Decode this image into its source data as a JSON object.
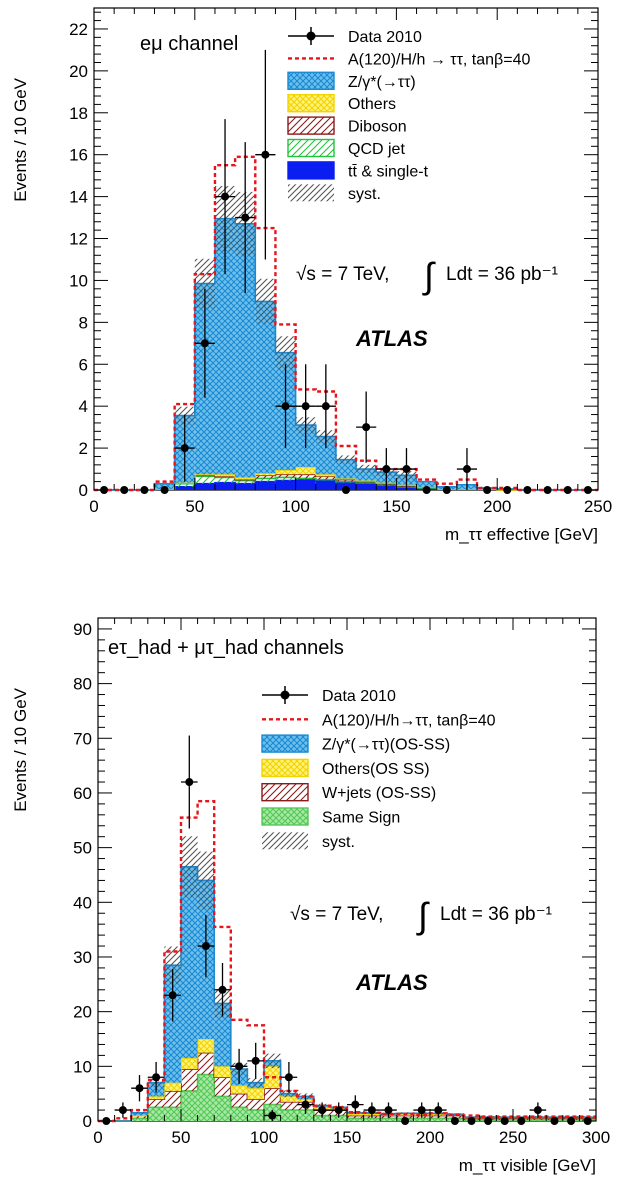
{
  "chart_data": [
    {
      "type": "bar",
      "channel_label": "eμ channel",
      "xlabel": "m_ττ effective [GeV]",
      "ylabel": "Events / 10 GeV",
      "xlim": [
        0,
        250
      ],
      "ylim": [
        0,
        23
      ],
      "xticks": [
        0,
        50,
        100,
        150,
        200,
        250
      ],
      "yticks": [
        0,
        2,
        4,
        6,
        8,
        10,
        12,
        14,
        16,
        18,
        20,
        22
      ],
      "energy_text": "√s = 7 TeV,",
      "lumi_text": "Ldt = 36 pb⁻¹",
      "atlas_label": "ATLAS",
      "legend_position": "top-right",
      "legend": [
        {
          "key": "data",
          "label": "Data 2010",
          "style": "marker",
          "color": "#000000"
        },
        {
          "key": "signal",
          "label": "A(120)/H/h → ττ, tanβ=40",
          "style": "dashed",
          "color": "#e8141c"
        },
        {
          "key": "ztautau",
          "label": "Z/γ*(→ττ)",
          "style": "fill",
          "color": "#6ec0ea",
          "edge": "#1a8ad4"
        },
        {
          "key": "others",
          "label": "Others",
          "style": "fill",
          "color": "#fff27a",
          "edge": "#f2d400"
        },
        {
          "key": "diboson",
          "label": "Diboson",
          "style": "hatch",
          "color": "#8b1a1a"
        },
        {
          "key": "qcd",
          "label": "QCD jet",
          "style": "hatch",
          "color": "#22c43a"
        },
        {
          "key": "ttbar",
          "label": "tt̄ & single-t",
          "style": "fill",
          "color": "#0a1ef2",
          "edge": "#0a1ef2"
        },
        {
          "key": "syst",
          "label": "syst.",
          "style": "hatch",
          "color": "#555555"
        }
      ],
      "bins": [
        0,
        10,
        20,
        30,
        40,
        50,
        60,
        70,
        80,
        90,
        100,
        110,
        120,
        130,
        140,
        150,
        160,
        170,
        180,
        190,
        200,
        210,
        220,
        230,
        240,
        250
      ],
      "stack": {
        "ttbar": [
          0,
          0,
          0,
          0.05,
          0.15,
          0.3,
          0.35,
          0.3,
          0.4,
          0.45,
          0.5,
          0.45,
          0.35,
          0.3,
          0.2,
          0.15,
          0.1,
          0.05,
          0.05,
          0.05,
          0,
          0,
          0,
          0,
          0
        ],
        "qcd": [
          0,
          0,
          0,
          0,
          0.15,
          0.35,
          0.25,
          0.15,
          0.15,
          0.15,
          0.05,
          0.05,
          0.05,
          0.05,
          0.05,
          0,
          0,
          0,
          0,
          0,
          0,
          0,
          0,
          0,
          0
        ],
        "diboson": [
          0,
          0,
          0,
          0,
          0.05,
          0.05,
          0.05,
          0.05,
          0.15,
          0.15,
          0.2,
          0.15,
          0.1,
          0.05,
          0.05,
          0.05,
          0.05,
          0,
          0,
          0,
          0,
          0,
          0,
          0,
          0
        ],
        "others": [
          0,
          0,
          0,
          0,
          0,
          0.05,
          0.1,
          0.1,
          0.1,
          0.2,
          0.35,
          0.1,
          0.05,
          0.05,
          0.05,
          0.05,
          0,
          0,
          0,
          0,
          0,
          0,
          0,
          0,
          0
        ],
        "ztautau": [
          0,
          0,
          0,
          0.25,
          3.2,
          9.1,
          12.2,
          12.1,
          8.2,
          5.6,
          2.0,
          1.8,
          0.9,
          0.55,
          0.5,
          0.45,
          0.25,
          0.1,
          0.2,
          0.05,
          0.05,
          0,
          0,
          0,
          0
        ]
      },
      "signal": [
        0,
        0,
        0,
        0.4,
        4.1,
        10.3,
        15.5,
        15.9,
        12.5,
        7.9,
        4.8,
        4.7,
        2.1,
        1.4,
        1.0,
        1.0,
        0.5,
        0.3,
        0.5,
        0.1,
        0.1,
        0,
        0,
        0,
        0
      ],
      "data": [
        {
          "x": 5,
          "y": 0
        },
        {
          "x": 15,
          "y": 0
        },
        {
          "x": 25,
          "y": 0
        },
        {
          "x": 35,
          "y": 0
        },
        {
          "x": 45,
          "y": 2,
          "err": 1.6
        },
        {
          "x": 55,
          "y": 7,
          "err": 2.6
        },
        {
          "x": 65,
          "y": 14,
          "err": 3.7
        },
        {
          "x": 75,
          "y": 13,
          "err": 3.6
        },
        {
          "x": 85,
          "y": 16,
          "err": 5.0
        },
        {
          "x": 95,
          "y": 4,
          "err": 2.0
        },
        {
          "x": 105,
          "y": 4,
          "err": 2.0
        },
        {
          "x": 115,
          "y": 4,
          "err": 2.0
        },
        {
          "x": 125,
          "y": 0
        },
        {
          "x": 135,
          "y": 3,
          "err": 1.7
        },
        {
          "x": 145,
          "y": 1,
          "err": 1.0
        },
        {
          "x": 155,
          "y": 1,
          "err": 1.0
        },
        {
          "x": 165,
          "y": 0
        },
        {
          "x": 175,
          "y": 0
        },
        {
          "x": 185,
          "y": 1,
          "err": 1.0
        },
        {
          "x": 195,
          "y": 0
        },
        {
          "x": 205,
          "y": 0
        },
        {
          "x": 215,
          "y": 0
        },
        {
          "x": 225,
          "y": 0
        },
        {
          "x": 235,
          "y": 0
        },
        {
          "x": 245,
          "y": 0
        }
      ]
    },
    {
      "type": "bar",
      "channel_label": "eτ_had + μτ_had channels",
      "xlabel": "m_ττ visible [GeV]",
      "ylabel": "Events / 10 GeV",
      "xlim": [
        0,
        300
      ],
      "ylim": [
        0,
        92
      ],
      "xticks": [
        0,
        50,
        100,
        150,
        200,
        250,
        300
      ],
      "yticks": [
        0,
        10,
        20,
        30,
        40,
        50,
        60,
        70,
        80,
        90
      ],
      "energy_text": "√s = 7 TeV,",
      "lumi_text": "Ldt = 36 pb⁻¹",
      "atlas_label": "ATLAS",
      "legend_position": "top-right",
      "legend": [
        {
          "key": "data",
          "label": "Data 2010",
          "style": "marker",
          "color": "#000000"
        },
        {
          "key": "signal",
          "label": "A(120)/H/h→ττ, tanβ=40",
          "style": "dashed",
          "color": "#e8141c"
        },
        {
          "key": "ztautau",
          "label": "Z/γ*(→ττ)(OS-SS)",
          "style": "fill",
          "color": "#6ec0ea",
          "edge": "#1a8ad4"
        },
        {
          "key": "others",
          "label": "Others(OS SS)",
          "style": "fill",
          "color": "#fff27a",
          "edge": "#f2d400"
        },
        {
          "key": "wjets",
          "label": "W+jets (OS-SS)",
          "style": "hatch",
          "color": "#8b1a1a"
        },
        {
          "key": "samesign",
          "label": "Same Sign",
          "style": "fill",
          "color": "#a6e8a6",
          "edge": "#55c855"
        },
        {
          "key": "syst",
          "label": "syst.",
          "style": "hatch",
          "color": "#555555"
        }
      ],
      "bins": [
        0,
        10,
        20,
        30,
        40,
        50,
        60,
        70,
        80,
        90,
        100,
        110,
        120,
        130,
        140,
        150,
        160,
        170,
        180,
        190,
        200,
        210,
        220,
        230,
        240,
        250,
        260,
        270,
        280,
        290,
        300
      ],
      "stack": {
        "samesign": [
          0,
          0,
          0.5,
          2.5,
          2.5,
          5.5,
          8.5,
          4.5,
          2.5,
          2.0,
          3.0,
          2.0,
          2.0,
          1.0,
          1.0,
          0.5,
          0.5,
          0.5,
          0.5,
          0.5,
          0.5,
          0.5,
          0.2,
          0.2,
          0.2,
          0.2,
          0.2,
          0.2,
          0.2,
          0.2
        ],
        "wjets": [
          0,
          0,
          0.5,
          1.5,
          3.0,
          4.0,
          4.0,
          3.5,
          2.5,
          2.0,
          3.0,
          1.5,
          1.5,
          1.0,
          1.0,
          0.5,
          0.5,
          0.5,
          0.5,
          0.5,
          0.5,
          0.5,
          0.3,
          0.3,
          0.3,
          0.3,
          0.3,
          0.3,
          0.3,
          0.3
        ],
        "others": [
          0,
          0,
          0,
          0.5,
          1.5,
          2.0,
          2.5,
          2.0,
          1.5,
          2.0,
          4.0,
          1.0,
          0.5,
          0.5,
          0.3,
          0.3,
          0.3,
          0.2,
          0.3,
          0.3,
          0.3,
          0.2,
          0.2,
          0.2,
          0.2,
          0.2,
          0.2,
          0.2,
          0.2,
          0.2
        ],
        "ztautau": [
          0,
          0,
          0.5,
          2.5,
          21.5,
          35.0,
          29.0,
          11.5,
          3.0,
          1.0,
          1.0,
          0.5,
          0.5,
          0.3,
          0.2,
          0.2,
          0.2,
          0.1,
          0.1,
          0.1,
          0.1,
          0,
          0,
          0,
          0,
          0,
          0,
          0,
          0,
          0
        ]
      },
      "signal": [
        0,
        0.5,
        2.0,
        7.5,
        31,
        55.5,
        58.5,
        35.5,
        18.5,
        17.5,
        8.0,
        5.5,
        4.5,
        2.8,
        2.5,
        1.6,
        1.5,
        1.3,
        1.3,
        1.1,
        1.4,
        1.2,
        1.0,
        0.8,
        0.8,
        0.8,
        0.8,
        0.8,
        0.8,
        0.8
      ],
      "data": [
        {
          "x": 5,
          "y": 0
        },
        {
          "x": 15,
          "y": 2,
          "err": 1.4
        },
        {
          "x": 25,
          "y": 6,
          "err": 2.4
        },
        {
          "x": 35,
          "y": 8,
          "err": 2.8
        },
        {
          "x": 45,
          "y": 23,
          "err": 4.8
        },
        {
          "x": 55,
          "y": 62,
          "err": 8.5
        },
        {
          "x": 65,
          "y": 32,
          "err": 5.7
        },
        {
          "x": 75,
          "y": 24,
          "err": 4.9
        },
        {
          "x": 85,
          "y": 10,
          "err": 3.2
        },
        {
          "x": 95,
          "y": 11,
          "err": 3.3
        },
        {
          "x": 105,
          "y": 1,
          "err": 1.0
        },
        {
          "x": 115,
          "y": 8,
          "err": 2.8
        },
        {
          "x": 125,
          "y": 3,
          "err": 1.7
        },
        {
          "x": 135,
          "y": 2,
          "err": 1.4
        },
        {
          "x": 145,
          "y": 2,
          "err": 1.4
        },
        {
          "x": 155,
          "y": 3,
          "err": 1.7
        },
        {
          "x": 165,
          "y": 2,
          "err": 1.4
        },
        {
          "x": 175,
          "y": 2,
          "err": 1.4
        },
        {
          "x": 185,
          "y": 0
        },
        {
          "x": 195,
          "y": 2,
          "err": 1.4
        },
        {
          "x": 205,
          "y": 2,
          "err": 1.4
        },
        {
          "x": 215,
          "y": 0
        },
        {
          "x": 225,
          "y": 0
        },
        {
          "x": 235,
          "y": 0
        },
        {
          "x": 245,
          "y": 0
        },
        {
          "x": 255,
          "y": 0
        },
        {
          "x": 265,
          "y": 2,
          "err": 1.4
        },
        {
          "x": 275,
          "y": 0
        },
        {
          "x": 285,
          "y": 0
        },
        {
          "x": 295,
          "y": 0
        }
      ]
    }
  ]
}
